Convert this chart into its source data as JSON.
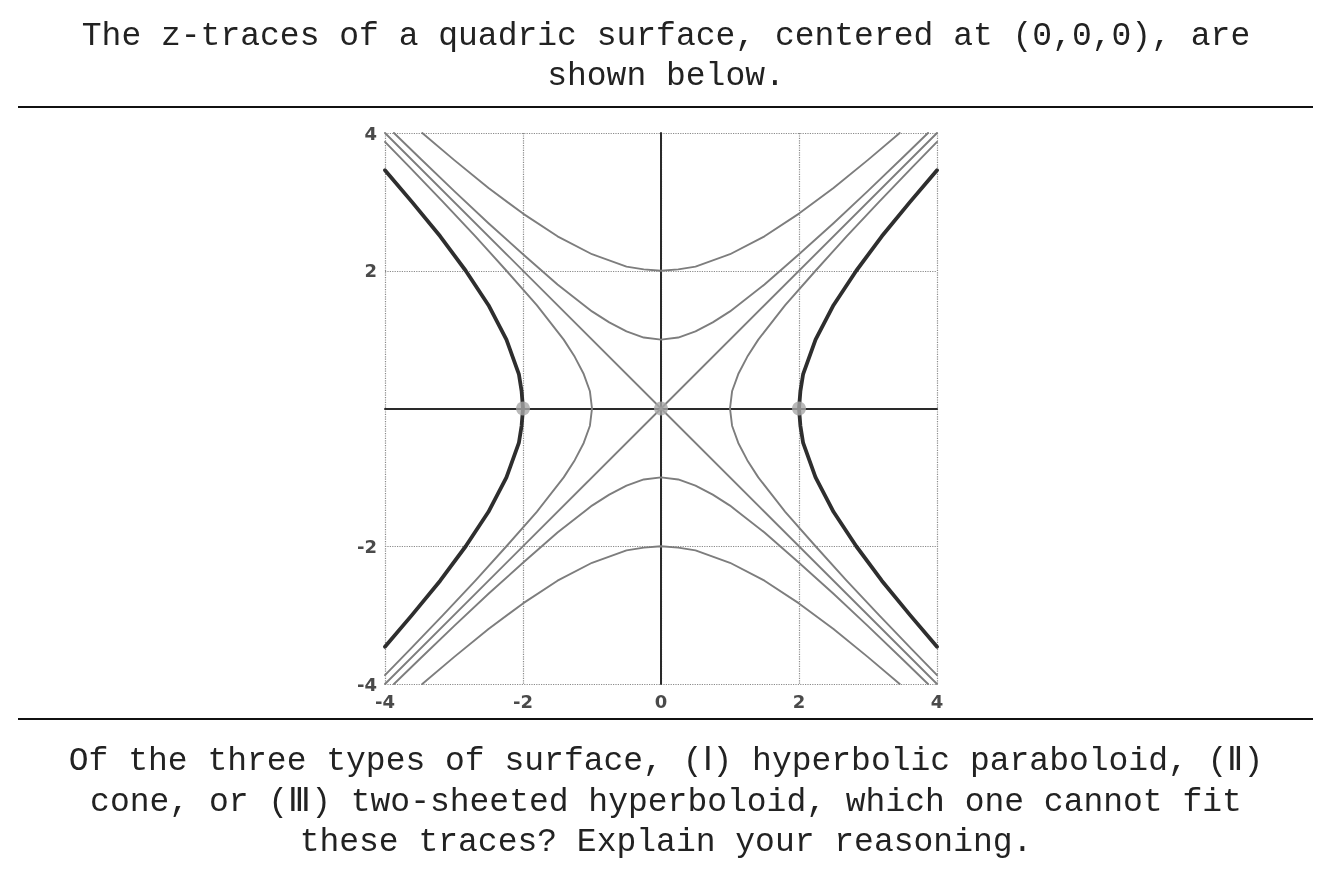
{
  "chart_data": {
    "type": "line",
    "title": "The z-traces of a quadric surface, centered at (0,0,0), are shown below.",
    "annotations": [
      "Of the three types of surface, (Ⅰ) hyperbolic paraboloid, (Ⅱ) cone, or (Ⅲ) two-sheeted hyperboloid, which one cannot fit these traces? Explain your reasoning."
    ],
    "xlim": [
      -4,
      4
    ],
    "ylim": [
      -4,
      4
    ],
    "xticks": [
      -4,
      -2,
      0,
      2,
      4
    ],
    "yticks": [
      -4,
      -2,
      2,
      4
    ],
    "grid": true,
    "marker": "none",
    "line_style": "solid",
    "series": [
      {
        "color": "#2e2e2e",
        "x": [
          4.0,
          3.61,
          3.2,
          2.83,
          2.5,
          2.24,
          2.06,
          2.02,
          2,
          2.02,
          2.06,
          2.24,
          2.5,
          2.83,
          3.2,
          3.61,
          4.0
        ],
        "values": [
          -3.46,
          -3,
          -2.5,
          -2,
          -1.5,
          -1,
          -0.5,
          -0.25,
          0,
          0.25,
          0.5,
          1,
          1.5,
          2,
          2.5,
          3,
          3.46
        ]
      },
      {
        "color": "#2e2e2e",
        "x": [
          -4.0,
          -3.61,
          -3.2,
          -2.83,
          -2.5,
          -2.24,
          -2.06,
          -2.02,
          -2,
          -2.02,
          -2.06,
          -2.24,
          -2.5,
          -2.83,
          -3.2,
          -3.61,
          -4.0
        ],
        "values": [
          -3.46,
          -3,
          -2.5,
          -2,
          -1.5,
          -1,
          -0.5,
          -0.25,
          0,
          0.25,
          0.5,
          1,
          1.5,
          2,
          2.5,
          3,
          3.46
        ]
      },
      {
        "color": "#7d7d7d",
        "x": [
          4.0,
          3.64,
          3.16,
          2.69,
          2.24,
          1.8,
          1.41,
          1.25,
          1.12,
          1.03,
          1,
          1.03,
          1.12,
          1.25,
          1.41,
          1.8,
          2.24,
          2.69,
          3.16,
          3.64,
          4.0
        ],
        "values": [
          -3.87,
          -3.5,
          -3,
          -2.5,
          -2,
          -1.5,
          -1,
          -0.75,
          -0.5,
          -0.25,
          0,
          0.25,
          0.5,
          0.75,
          1,
          1.5,
          2,
          2.5,
          3,
          3.5,
          3.87
        ]
      },
      {
        "color": "#7d7d7d",
        "x": [
          -4.0,
          -3.64,
          -3.16,
          -2.69,
          -2.24,
          -1.8,
          -1.41,
          -1.25,
          -1.12,
          -1.03,
          -1,
          -1.03,
          -1.12,
          -1.25,
          -1.41,
          -1.8,
          -2.24,
          -2.69,
          -3.16,
          -3.64,
          -4.0
        ],
        "values": [
          -3.87,
          -3.5,
          -3,
          -2.5,
          -2,
          -1.5,
          -1,
          -0.75,
          -0.5,
          -0.25,
          0,
          0.25,
          0.5,
          0.75,
          1,
          1.5,
          2,
          2.5,
          3,
          3.5,
          3.87
        ]
      },
      {
        "color": "#7d7d7d",
        "x": [
          -3.87,
          -3.5,
          -3,
          -2.5,
          -2,
          -1.5,
          -1,
          -0.75,
          -0.5,
          -0.25,
          0,
          0.25,
          0.5,
          0.75,
          1,
          1.5,
          2,
          2.5,
          3,
          3.5,
          3.87
        ],
        "values": [
          4.0,
          3.64,
          3.16,
          2.69,
          2.24,
          1.8,
          1.41,
          1.25,
          1.12,
          1.03,
          1,
          1.03,
          1.12,
          1.25,
          1.41,
          1.8,
          2.24,
          2.69,
          3.16,
          3.64,
          4.0
        ]
      },
      {
        "color": "#7d7d7d",
        "x": [
          -3.87,
          -3.5,
          -3,
          -2.5,
          -2,
          -1.5,
          -1,
          -0.75,
          -0.5,
          -0.25,
          0,
          0.25,
          0.5,
          0.75,
          1,
          1.5,
          2,
          2.5,
          3,
          3.5,
          3.87
        ],
        "values": [
          -4.0,
          -3.64,
          -3.16,
          -2.69,
          -2.24,
          -1.8,
          -1.41,
          -1.25,
          -1.12,
          -1.03,
          -1,
          -1.03,
          -1.12,
          -1.25,
          -1.41,
          -1.8,
          -2.24,
          -2.69,
          -3.16,
          -3.64,
          -4.0
        ]
      },
      {
        "color": "#7d7d7d",
        "x": [
          -3.46,
          -3,
          -2.5,
          -2,
          -1.5,
          -1,
          -0.5,
          -0.25,
          0,
          0.25,
          0.5,
          1,
          1.5,
          2,
          2.5,
          3,
          3.46
        ],
        "values": [
          4.0,
          3.61,
          3.2,
          2.83,
          2.5,
          2.24,
          2.06,
          2.02,
          2,
          2.02,
          2.06,
          2.24,
          2.5,
          2.83,
          3.2,
          3.61,
          4.0
        ]
      },
      {
        "color": "#7d7d7d",
        "x": [
          -3.46,
          -3,
          -2.5,
          -2,
          -1.5,
          -1,
          -0.5,
          -0.25,
          0,
          0.25,
          0.5,
          1,
          1.5,
          2,
          2.5,
          3,
          3.46
        ],
        "values": [
          -4.0,
          -3.61,
          -3.2,
          -2.83,
          -2.5,
          -2.24,
          -2.06,
          -2.02,
          -2,
          -2.02,
          -2.06,
          -2.24,
          -2.5,
          -2.83,
          -3.2,
          -3.61,
          -4.0
        ]
      },
      {
        "color": "#7d7d7d",
        "x": [
          -4,
          0,
          4
        ],
        "values": [
          -4,
          0,
          4
        ]
      },
      {
        "color": "#7d7d7d",
        "x": [
          -4,
          0,
          4
        ],
        "values": [
          4,
          0,
          -4
        ]
      },
      {
        "type": "scatter",
        "marker": "circle",
        "color": "#a8a8a8",
        "x": [
          -2,
          0,
          2
        ],
        "values": [
          0,
          0,
          0
        ]
      }
    ]
  }
}
